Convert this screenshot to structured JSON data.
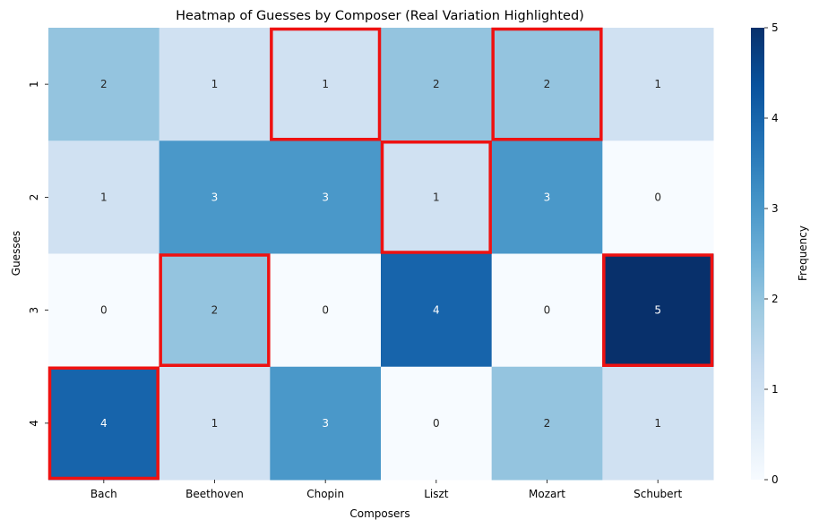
{
  "chart_data": {
    "type": "heatmap",
    "title": "Heatmap of Guesses by Composer (Real Variation Highlighted)",
    "xlabel": "Composers",
    "ylabel": "Guesses",
    "x_categories": [
      "Bach",
      "Beethoven",
      "Chopin",
      "Liszt",
      "Mozart",
      "Schubert"
    ],
    "y_categories": [
      "1",
      "2",
      "3",
      "4"
    ],
    "values": [
      [
        2,
        1,
        1,
        2,
        2,
        1
      ],
      [
        1,
        3,
        3,
        1,
        3,
        0
      ],
      [
        0,
        2,
        0,
        4,
        0,
        5
      ],
      [
        4,
        1,
        3,
        0,
        2,
        1
      ]
    ],
    "highlighted": [
      {
        "composer": "Bach",
        "guess": "4"
      },
      {
        "composer": "Beethoven",
        "guess": "3"
      },
      {
        "composer": "Chopin",
        "guess": "1"
      },
      {
        "composer": "Liszt",
        "guess": "2"
      },
      {
        "composer": "Mozart",
        "guess": "1"
      },
      {
        "composer": "Schubert",
        "guess": "3"
      }
    ],
    "colorbar": {
      "label": "Frequency",
      "range": [
        0,
        5
      ],
      "ticks": [
        "0",
        "1",
        "2",
        "3",
        "4",
        "5"
      ],
      "colormap": "Blues"
    },
    "highlight_color": "#ee1111",
    "grid": false,
    "legend": "none"
  }
}
